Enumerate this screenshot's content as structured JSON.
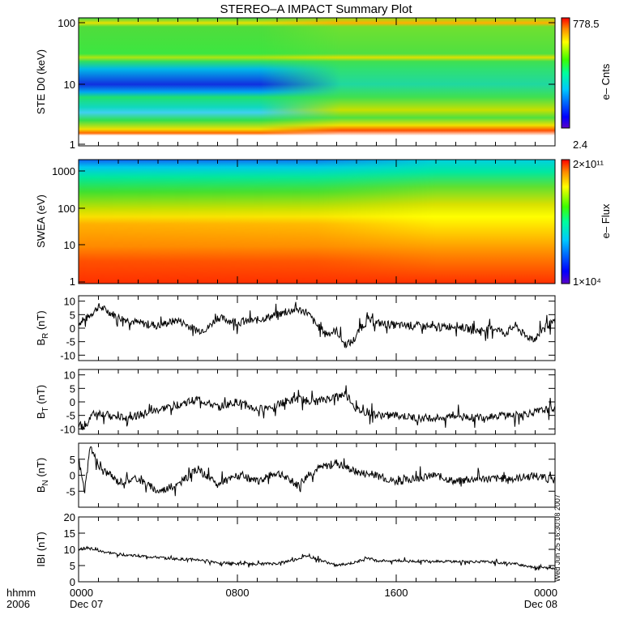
{
  "title": "STEREO–A IMPACT Summary Plot",
  "footer": {
    "format_label": "hhmm",
    "year_label": "2006",
    "timestamp": "Wed Jun 25 16:30:08 2007"
  },
  "colors": {
    "line": "#000000",
    "colorbar": [
      "#5b00c8",
      "#0000ff",
      "#00c8ff",
      "#00ff9c",
      "#3cff00",
      "#ffff00",
      "#ff8c00",
      "#ff0000"
    ]
  },
  "chart_data": [
    {
      "type": "heatmap",
      "id": "ste",
      "ylabel": "STE D0 (keV)",
      "yscale": "log",
      "ylim": [
        1,
        100
      ],
      "yticks": [
        "1",
        "10",
        "100"
      ],
      "colorbar": {
        "label": "e– Cnts",
        "max": "778.5",
        "min": "2.4",
        "scale": "log"
      }
    },
    {
      "type": "heatmap",
      "id": "swea",
      "ylabel": "SWEA (eV)",
      "yscale": "log",
      "ylim": [
        1,
        2000
      ],
      "yticks": [
        "1",
        "10",
        "100",
        "1000"
      ],
      "colorbar": {
        "label": "e– Flux",
        "max": "2×10¹¹",
        "min": "1×10⁴",
        "scale": "log"
      }
    },
    {
      "type": "line",
      "id": "br",
      "ylabel": "B",
      "ylabel_sub": "R",
      "ylabel_unit": " (nT)",
      "ylim": [
        -12,
        12
      ],
      "yticks": [
        -10,
        -5,
        0,
        5,
        10
      ],
      "x_hours": [
        0,
        0.3,
        0.6,
        1,
        1.3,
        2,
        3,
        4,
        5,
        6,
        6.5,
        7,
        8,
        9,
        10,
        11,
        11.5,
        12,
        12.5,
        13,
        13.4,
        13.8,
        14.2,
        14.6,
        15,
        16,
        17,
        18,
        19,
        20,
        21,
        21.5,
        22,
        22.5,
        23,
        23.5,
        24
      ],
      "values": [
        2,
        3,
        5,
        8,
        7,
        4,
        2,
        1,
        3,
        -1,
        0,
        4,
        2,
        3,
        5,
        7,
        6,
        1,
        -2,
        -1,
        -6,
        -5,
        0,
        3,
        2,
        1,
        1,
        0,
        1,
        -1,
        0,
        -2,
        1,
        -3,
        -4,
        1,
        2
      ]
    },
    {
      "type": "line",
      "id": "bt",
      "ylabel": "B",
      "ylabel_sub": "T",
      "ylabel_unit": " (nT)",
      "ylim": [
        -12,
        12
      ],
      "yticks": [
        -10,
        -5,
        0,
        5,
        10
      ],
      "x_hours": [
        0,
        0.3,
        0.6,
        1,
        2,
        3,
        4,
        5,
        6,
        7,
        8,
        9,
        10,
        11,
        12,
        13,
        13.5,
        14,
        15,
        16,
        17,
        18,
        19,
        20,
        21,
        22,
        23,
        23.5,
        24
      ],
      "values": [
        -8,
        -10,
        -5,
        -4,
        -6,
        -5,
        -3,
        -1,
        1,
        -2,
        0,
        -3,
        -1,
        1,
        0,
        2,
        3,
        -3,
        -5,
        -5,
        -6,
        -6,
        -5,
        -6,
        -5,
        -5,
        -4,
        -3,
        -2
      ]
    },
    {
      "type": "line",
      "id": "bn",
      "ylabel": "B",
      "ylabel_sub": "N",
      "ylabel_unit": " (nT)",
      "ylim": [
        -10,
        10
      ],
      "yticks": [
        -5,
        0,
        5
      ],
      "x_hours": [
        0,
        0.3,
        0.6,
        1,
        2,
        3,
        4,
        5,
        6,
        7,
        8,
        9,
        10,
        11,
        12,
        13,
        14,
        15,
        16,
        17,
        18,
        19,
        20,
        21,
        22,
        23,
        23.5,
        24
      ],
      "values": [
        5,
        -5,
        9,
        3,
        -2,
        -1,
        -5,
        -3,
        2,
        -3,
        0,
        -2,
        1,
        -3,
        2,
        4,
        1,
        0,
        -2,
        -1,
        0,
        -2,
        -1,
        -1,
        -1,
        0,
        -1,
        -2
      ]
    },
    {
      "type": "line",
      "id": "bmag",
      "ylabel": "IBI (nT)",
      "ylim": [
        0,
        20
      ],
      "yticks": [
        0,
        5,
        10,
        15,
        20
      ],
      "x_hours": [
        0,
        0.5,
        1,
        2,
        3,
        4,
        5,
        6,
        7,
        8,
        9,
        10,
        11,
        11.5,
        12,
        13,
        14,
        14.5,
        15,
        16,
        17,
        18,
        19,
        20,
        21,
        22,
        23,
        24
      ],
      "values": [
        10,
        10.5,
        9.5,
        8.5,
        8,
        7.5,
        7,
        6.8,
        6,
        5.5,
        5.5,
        5.6,
        7,
        8,
        7,
        5,
        6,
        7.5,
        6.5,
        6.5,
        6.3,
        6.4,
        6.2,
        6.2,
        6,
        5.5,
        4.5,
        4
      ]
    }
  ],
  "xaxis": {
    "range_hours": [
      0,
      24
    ],
    "ticks": [
      {
        "hour": 0,
        "label": "0000",
        "date": "Dec 07"
      },
      {
        "hour": 8,
        "label": "0800",
        "date": ""
      },
      {
        "hour": 16,
        "label": "1600",
        "date": ""
      },
      {
        "hour": 24,
        "label": "0000",
        "date": "Dec 08"
      }
    ]
  }
}
